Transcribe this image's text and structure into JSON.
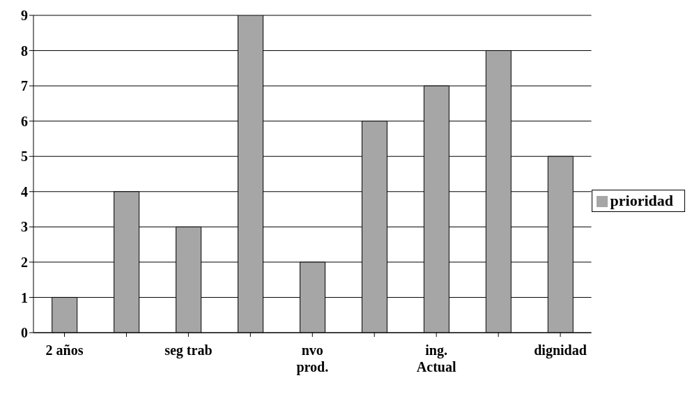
{
  "chart_data": {
    "type": "bar",
    "categories": [
      "2 años",
      null,
      "seg trab",
      null,
      "nvo prod.",
      null,
      "ing. Actual",
      null,
      "dignidad"
    ],
    "series": [
      {
        "name": "prioridad",
        "color": "#a6a6a6",
        "values": [
          1,
          4,
          3,
          9,
          2,
          6,
          7,
          8,
          5
        ]
      }
    ],
    "ylim": [
      0,
      9
    ],
    "yticks": [
      0,
      1,
      2,
      3,
      4,
      5,
      6,
      7,
      8,
      9
    ],
    "grid": "y",
    "legend": "right"
  }
}
